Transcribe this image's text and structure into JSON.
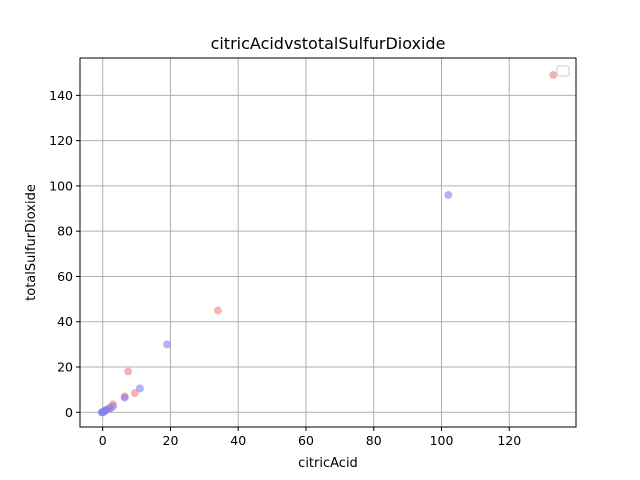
{
  "chart_data": {
    "type": "scatter",
    "title": "citricAcidvstotalSulfurDioxide",
    "xlabel": "citricAcid",
    "ylabel": "totalSulfurDioxide",
    "xlim": [
      -6.7,
      139.7
    ],
    "ylim": [
      -6.5,
      156.5
    ],
    "xticks": [
      0,
      20,
      40,
      60,
      80,
      100,
      120
    ],
    "yticks": [
      0,
      20,
      40,
      60,
      80,
      100,
      120,
      140
    ],
    "grid": true,
    "legend": {
      "placement": "top-right",
      "entries": []
    },
    "series": [
      {
        "color": "#f08080",
        "points": [
          {
            "x": 133,
            "y": 149
          },
          {
            "x": 34,
            "y": 45
          },
          {
            "x": 7.5,
            "y": 18
          },
          {
            "x": 9.5,
            "y": 8.5
          },
          {
            "x": 6.5,
            "y": 7
          },
          {
            "x": 3,
            "y": 3.5
          },
          {
            "x": 2,
            "y": 2
          },
          {
            "x": 1,
            "y": 1
          },
          {
            "x": 0.5,
            "y": 0.5
          },
          {
            "x": 0,
            "y": 0
          }
        ]
      },
      {
        "color": "#8080f0",
        "points": [
          {
            "x": 102,
            "y": 96
          },
          {
            "x": 19,
            "y": 30
          },
          {
            "x": 11,
            "y": 10.5
          },
          {
            "x": 6.5,
            "y": 6.5
          },
          {
            "x": 3,
            "y": 2.5
          },
          {
            "x": 2,
            "y": 1.5
          },
          {
            "x": 1,
            "y": 1
          },
          {
            "x": 0.3,
            "y": 0.3
          },
          {
            "x": 0,
            "y": 0
          },
          {
            "x": -0.3,
            "y": 0
          }
        ]
      }
    ]
  }
}
